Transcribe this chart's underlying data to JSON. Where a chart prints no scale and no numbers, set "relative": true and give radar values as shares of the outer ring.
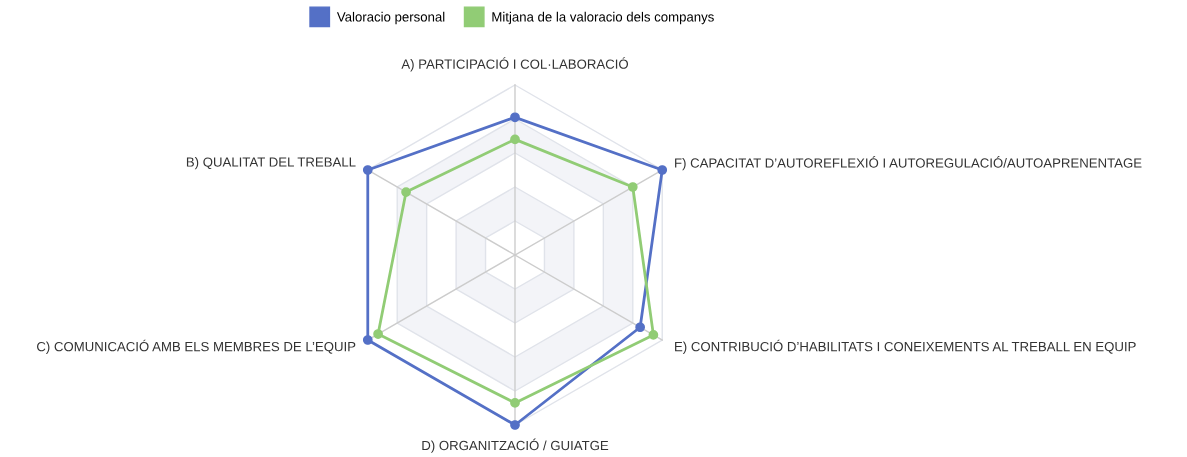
{
  "chart_data": {
    "type": "radar",
    "relative": true,
    "categories": [
      "A) PARTICIPACIÓ I COL·LABORACIÓ",
      "F) CAPACITAT D’AUTOREFLEXIÓ I AUTOREGULACIÓ/AUTOAPRENENTAGE",
      "E) CONTRIBUCIÓ D’HABILITATS I CONEIXEMENTS AL TREBALL EN EQUIP",
      "D) ORGANITZACIÓ / GUIATGE",
      "C) COMUNICACIÓ AMB ELS MEMBRES DE L’EQUIP",
      "B) QUALITAT DEL TREBALL"
    ],
    "series": [
      {
        "name": "Valoracio personal",
        "color": "#5470c6",
        "values": [
          0.81,
          1.0,
          0.85,
          1.0,
          1.0,
          1.0
        ]
      },
      {
        "name": "Mitjana de la valoracio dels companys",
        "color": "#91cc75",
        "values": [
          0.68,
          0.8,
          0.94,
          0.87,
          0.93,
          0.74
        ]
      }
    ],
    "grid": true,
    "legend": "top",
    "marker": "circle",
    "line_style": "solid"
  }
}
